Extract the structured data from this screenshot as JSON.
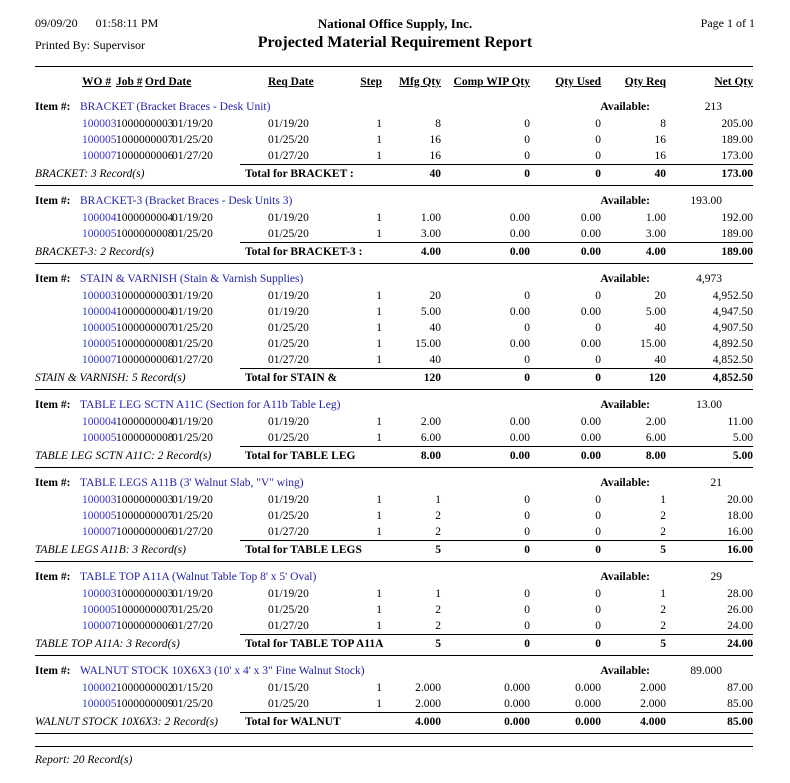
{
  "header": {
    "date": "09/09/20",
    "time": "01:58:11 PM",
    "printed_by": "Printed By: Supervisor",
    "company": "National Office Supply, Inc.",
    "title": "Projected Material Requirement Report",
    "page": "Page 1 of 1"
  },
  "labels": {
    "item_number": "Item #:",
    "available": "Available:"
  },
  "columns": [
    "WO #",
    "Job #",
    "Ord Date",
    "Req Date",
    "Step",
    "Mfg Qty",
    "Comp WIP Qty",
    "Qty Used",
    "Qty Req",
    "Net Qty"
  ],
  "colors": {
    "item_name_blue": "#2121aa",
    "wo_link_blue": "#3333cc"
  },
  "groups": [
    {
      "item_name": "BRACKET (Bracket Braces - Desk Unit)",
      "available": "213",
      "rows": [
        [
          "100003",
          "1000000003",
          "01/19/20",
          "01/19/20",
          "1",
          "8",
          "0",
          "0",
          "8",
          "205.00"
        ],
        [
          "100005",
          "1000000007",
          "01/25/20",
          "01/25/20",
          "1",
          "16",
          "0",
          "0",
          "16",
          "189.00"
        ],
        [
          "100007",
          "1000000006",
          "01/27/20",
          "01/27/20",
          "1",
          "16",
          "0",
          "0",
          "16",
          "173.00"
        ]
      ],
      "footer": {
        "records": "BRACKET: 3 Record(s)",
        "total_label": "Total for BRACKET :",
        "totals": [
          "40",
          "0",
          "0",
          "40",
          "173.00"
        ]
      }
    },
    {
      "item_name": "BRACKET-3 (Bracket Braces - Desk Units 3)",
      "available": "193.00",
      "rows": [
        [
          "100004",
          "1000000004",
          "01/19/20",
          "01/19/20",
          "1",
          "1.00",
          "0.00",
          "0.00",
          "1.00",
          "192.00"
        ],
        [
          "100005",
          "1000000008",
          "01/25/20",
          "01/25/20",
          "1",
          "3.00",
          "0.00",
          "0.00",
          "3.00",
          "189.00"
        ]
      ],
      "footer": {
        "records": "BRACKET-3: 2 Record(s)",
        "total_label": "Total for BRACKET-3 :",
        "totals": [
          "4.00",
          "0.00",
          "0.00",
          "4.00",
          "189.00"
        ]
      }
    },
    {
      "item_name": "STAIN & VARNISH (Stain & Varnish Supplies)",
      "available": "4,973",
      "rows": [
        [
          "100003",
          "1000000003",
          "01/19/20",
          "01/19/20",
          "1",
          "20",
          "0",
          "0",
          "20",
          "4,952.50"
        ],
        [
          "100004",
          "1000000004",
          "01/19/20",
          "01/19/20",
          "1",
          "5.00",
          "0.00",
          "0.00",
          "5.00",
          "4,947.50"
        ],
        [
          "100005",
          "1000000007",
          "01/25/20",
          "01/25/20",
          "1",
          "40",
          "0",
          "0",
          "40",
          "4,907.50"
        ],
        [
          "100005",
          "1000000008",
          "01/25/20",
          "01/25/20",
          "1",
          "15.00",
          "0.00",
          "0.00",
          "15.00",
          "4,892.50"
        ],
        [
          "100007",
          "1000000006",
          "01/27/20",
          "01/27/20",
          "1",
          "40",
          "0",
          "0",
          "40",
          "4,852.50"
        ]
      ],
      "footer": {
        "records": "STAIN & VARNISH: 5 Record(s)",
        "total_label": "Total for STAIN &",
        "totals": [
          "120",
          "0",
          "0",
          "120",
          "4,852.50"
        ]
      }
    },
    {
      "item_name": "TABLE LEG SCTN A11C (Section for A11b Table Leg)",
      "available": "13.00",
      "rows": [
        [
          "100004",
          "1000000004",
          "01/19/20",
          "01/19/20",
          "1",
          "2.00",
          "0.00",
          "0.00",
          "2.00",
          "11.00"
        ],
        [
          "100005",
          "1000000008",
          "01/25/20",
          "01/25/20",
          "1",
          "6.00",
          "0.00",
          "0.00",
          "6.00",
          "5.00"
        ]
      ],
      "footer": {
        "records": "TABLE LEG SCTN A11C: 2 Record(s)",
        "total_label": "Total for TABLE LEG",
        "totals": [
          "8.00",
          "0.00",
          "0.00",
          "8.00",
          "5.00"
        ]
      }
    },
    {
      "item_name": "TABLE LEGS A11B (3' Walnut Slab, \"V\" wing)",
      "available": "21",
      "rows": [
        [
          "100003",
          "1000000003",
          "01/19/20",
          "01/19/20",
          "1",
          "1",
          "0",
          "0",
          "1",
          "20.00"
        ],
        [
          "100005",
          "1000000007",
          "01/25/20",
          "01/25/20",
          "1",
          "2",
          "0",
          "0",
          "2",
          "18.00"
        ],
        [
          "100007",
          "1000000006",
          "01/27/20",
          "01/27/20",
          "1",
          "2",
          "0",
          "0",
          "2",
          "16.00"
        ]
      ],
      "footer": {
        "records": "TABLE LEGS A11B: 3 Record(s)",
        "total_label": "Total for TABLE LEGS",
        "totals": [
          "5",
          "0",
          "0",
          "5",
          "16.00"
        ]
      }
    },
    {
      "item_name": "TABLE TOP A11A (Walnut Table Top 8' x 5' Oval)",
      "available": "29",
      "rows": [
        [
          "100003",
          "1000000003",
          "01/19/20",
          "01/19/20",
          "1",
          "1",
          "0",
          "0",
          "1",
          "28.00"
        ],
        [
          "100005",
          "1000000007",
          "01/25/20",
          "01/25/20",
          "1",
          "2",
          "0",
          "0",
          "2",
          "26.00"
        ],
        [
          "100007",
          "1000000006",
          "01/27/20",
          "01/27/20",
          "1",
          "2",
          "0",
          "0",
          "2",
          "24.00"
        ]
      ],
      "footer": {
        "records": "TABLE TOP A11A: 3 Record(s)",
        "total_label": "Total for TABLE TOP A11A",
        "totals": [
          "5",
          "0",
          "0",
          "5",
          "24.00"
        ]
      }
    },
    {
      "item_name": "WALNUT STOCK 10X6X3 (10' x 4' x 3\" Fine Walnut Stock)",
      "available": "89.000",
      "rows": [
        [
          "100002",
          "1000000002",
          "01/15/20",
          "01/15/20",
          "1",
          "2.000",
          "0.000",
          "0.000",
          "2.000",
          "87.00"
        ],
        [
          "100005",
          "1000000009",
          "01/25/20",
          "01/25/20",
          "1",
          "2.000",
          "0.000",
          "0.000",
          "2.000",
          "85.00"
        ]
      ],
      "footer": {
        "records": "WALNUT STOCK 10X6X3: 2 Record(s)",
        "total_label": "Total for WALNUT",
        "totals": [
          "4.000",
          "0.000",
          "0.000",
          "4.000",
          "85.00"
        ]
      }
    }
  ],
  "report_footer": "Report: 20 Record(s)"
}
